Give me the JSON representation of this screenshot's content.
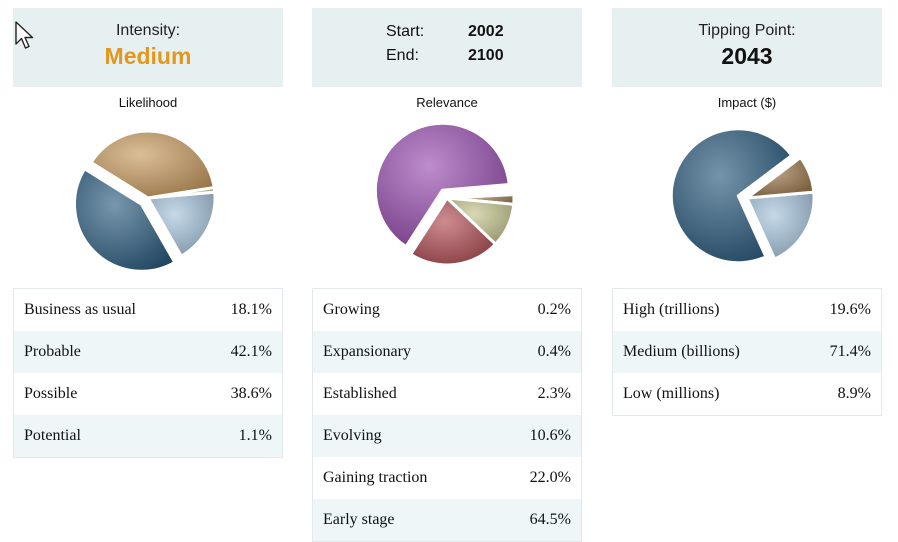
{
  "intensity": {
    "label": "Intensity:",
    "value": "Medium"
  },
  "period": {
    "start_label": "Start:",
    "start_value": "2002",
    "end_label": "End:",
    "end_value": "2100"
  },
  "tipping": {
    "label": "Tipping Point:",
    "value": "2043"
  },
  "icons": {
    "cursor": "mouse-pointer-icon"
  },
  "colors": {
    "accent": "#e2971d",
    "header_bg": "#e7f0f1",
    "row_alt_bg": "#eef6f7"
  },
  "chart_data": [
    {
      "type": "pie",
      "title": "Likelihood",
      "categories": [
        "Business as usual",
        "Probable",
        "Possible",
        "Potential"
      ],
      "values": [
        18.1,
        42.1,
        38.6,
        1.1
      ],
      "colors": [
        "#a6c4dc",
        "#2f5f82",
        "#c89b5f",
        "#c9c48a"
      ]
    },
    {
      "type": "pie",
      "title": "Relevance",
      "categories": [
        "Growing",
        "Expansionary",
        "Established",
        "Evolving",
        "Gaining traction",
        "Early stage"
      ],
      "values": [
        0.2,
        0.4,
        2.3,
        10.6,
        22.0,
        64.5
      ],
      "colors": [
        "#e0ad4a",
        "#2f6a8c",
        "#9a7a52",
        "#c5c48e",
        "#b24e55",
        "#9a4fb1"
      ]
    },
    {
      "type": "pie",
      "title": "Impact ($)",
      "categories": [
        "High (trillions)",
        "Medium (billions)",
        "Low (millions)"
      ],
      "values": [
        19.6,
        71.4,
        8.9
      ],
      "colors": [
        "#a6c4dc",
        "#2a5a7e",
        "#9a7548"
      ]
    }
  ],
  "tables": {
    "likelihood": [
      {
        "label": "Business as usual",
        "value": "18.1%"
      },
      {
        "label": "Probable",
        "value": "42.1%"
      },
      {
        "label": "Possible",
        "value": "38.6%"
      },
      {
        "label": "Potential",
        "value": "1.1%"
      }
    ],
    "relevance": [
      {
        "label": "Growing",
        "value": "0.2%"
      },
      {
        "label": "Expansionary",
        "value": "0.4%"
      },
      {
        "label": "Established",
        "value": "2.3%"
      },
      {
        "label": "Evolving",
        "value": "10.6%"
      },
      {
        "label": "Gaining traction",
        "value": "22.0%"
      },
      {
        "label": "Early stage",
        "value": "64.5%"
      }
    ],
    "impact": [
      {
        "label": "High (trillions)",
        "value": "19.6%"
      },
      {
        "label": "Medium (billions)",
        "value": "71.4%"
      },
      {
        "label": "Low (millions)",
        "value": "8.9%"
      }
    ]
  }
}
